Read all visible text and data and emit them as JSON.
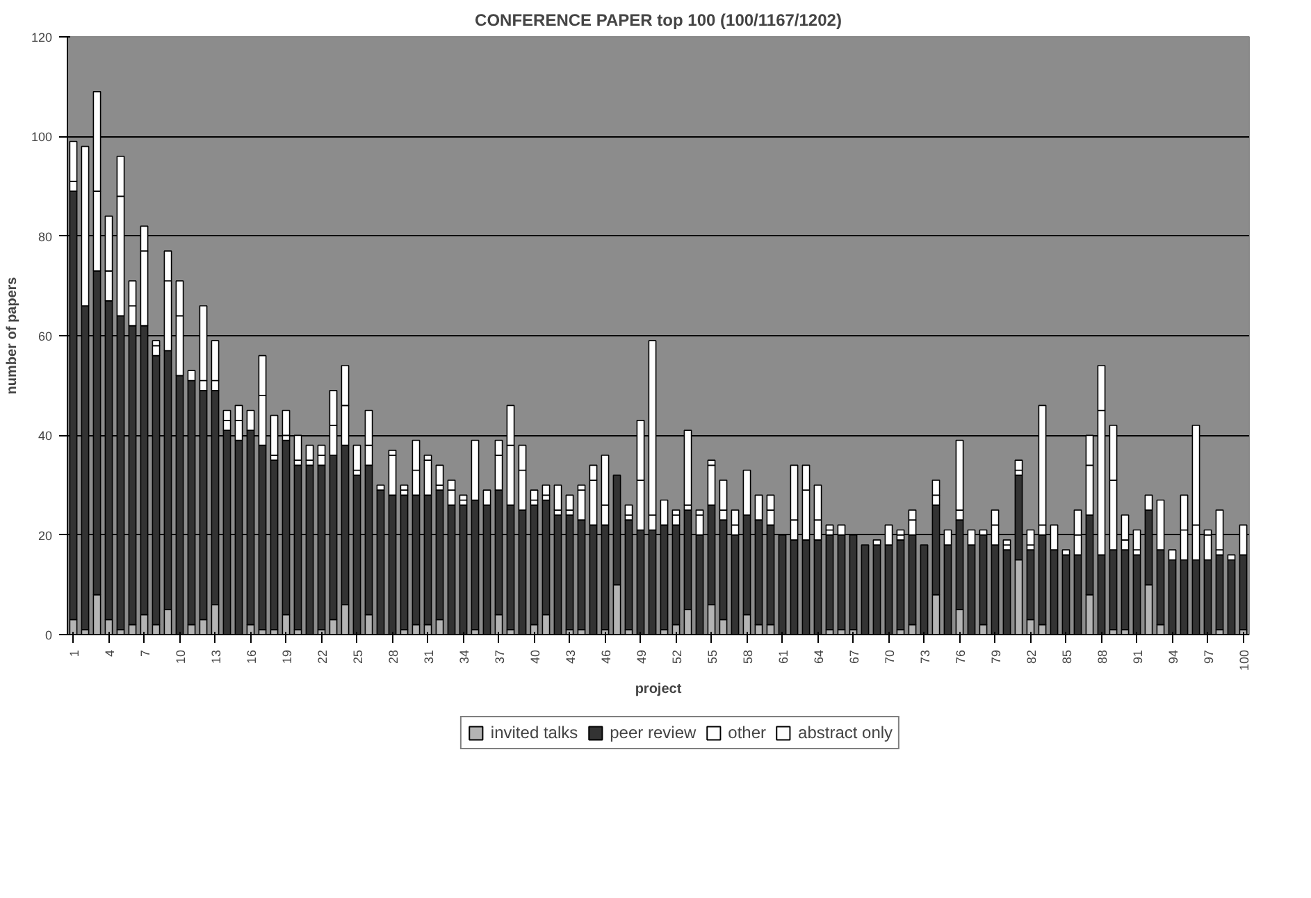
{
  "chart_data": {
    "type": "bar",
    "stacked": true,
    "title": "CONFERENCE PAPER top 100 (100/1167/1202)",
    "xlabel": "project",
    "ylabel": "number of papers",
    "categories": [
      "1",
      null,
      null,
      "4",
      null,
      null,
      "7",
      null,
      null,
      "10",
      null,
      null,
      "13",
      null,
      null,
      "16",
      null,
      null,
      "19",
      null,
      null,
      "22",
      null,
      null,
      "25",
      null,
      null,
      "28",
      null,
      null,
      "31",
      null,
      null,
      "34",
      null,
      null,
      "37",
      null,
      null,
      "40",
      null,
      null,
      "43",
      null,
      null,
      "46",
      null,
      null,
      "49",
      null,
      null,
      "52",
      null,
      null,
      "55",
      null,
      null,
      "58",
      null,
      null,
      "61",
      null,
      null,
      "64",
      null,
      null,
      "67",
      null,
      null,
      "70",
      null,
      null,
      "73",
      null,
      null,
      "76",
      null,
      null,
      "79",
      null,
      null,
      "82",
      null,
      null,
      "85",
      null,
      null,
      "88",
      null,
      null,
      "91",
      null,
      null,
      "94",
      null,
      null,
      "97",
      null,
      null,
      "100"
    ],
    "series": [
      {
        "name": "invited talks",
        "color": "#b4b4b4",
        "values": [
          3,
          1,
          8,
          3,
          1,
          2,
          4,
          2,
          5,
          0,
          2,
          3,
          6,
          0,
          0,
          2,
          1,
          1,
          4,
          1,
          0,
          1,
          3,
          6,
          0,
          4,
          0,
          0,
          1,
          2,
          2,
          3,
          0,
          0,
          1,
          0,
          4,
          1,
          0,
          2,
          4,
          0,
          1,
          1,
          0,
          1,
          10,
          1,
          0,
          0,
          1,
          2,
          5,
          0,
          6,
          3,
          0,
          4,
          2,
          2,
          0,
          0,
          0,
          0,
          1,
          1,
          1,
          0,
          0,
          0,
          1,
          2,
          0,
          8,
          0,
          5,
          0,
          2,
          0,
          0,
          15,
          3,
          2,
          0,
          0,
          0,
          8,
          0,
          1,
          1,
          0,
          10,
          2,
          0,
          0,
          0,
          0,
          1,
          0,
          1
        ]
      },
      {
        "name": "peer review",
        "color": "#333333",
        "values": [
          86,
          65,
          65,
          64,
          63,
          60,
          58,
          54,
          52,
          52,
          49,
          46,
          43,
          41,
          39,
          39,
          37,
          34,
          35,
          33,
          34,
          33,
          33,
          32,
          32,
          30,
          29,
          28,
          27,
          26,
          26,
          26,
          26,
          26,
          26,
          26,
          25,
          25,
          25,
          24,
          23,
          24,
          23,
          22,
          22,
          21,
          22,
          22,
          21,
          21,
          21,
          20,
          20,
          20,
          20,
          20,
          20,
          20,
          21,
          20,
          20,
          19,
          19,
          19,
          19,
          19,
          19,
          18,
          18,
          18,
          18,
          18,
          18,
          18,
          18,
          18,
          18,
          18,
          18,
          17,
          17,
          14,
          18,
          17,
          16,
          16,
          16,
          16,
          16,
          16,
          16,
          15,
          15,
          15,
          15,
          15,
          15,
          15,
          15,
          15
        ]
      },
      {
        "name": "other",
        "color": "#ffffff",
        "values": [
          2,
          32,
          16,
          6,
          24,
          4,
          15,
          2,
          14,
          12,
          2,
          2,
          2,
          2,
          4,
          4,
          10,
          1,
          1,
          1,
          1,
          2,
          6,
          8,
          1,
          4,
          1,
          8,
          1,
          5,
          7,
          1,
          3,
          1,
          12,
          3,
          7,
          12,
          8,
          1,
          1,
          1,
          1,
          6,
          9,
          4,
          0,
          1,
          10,
          3,
          5,
          2,
          1,
          4,
          8,
          2,
          2,
          9,
          5,
          3,
          0,
          4,
          10,
          4,
          1,
          2,
          0,
          0,
          1,
          4,
          1,
          3,
          0,
          2,
          3,
          2,
          3,
          1,
          4,
          1,
          1,
          1,
          2,
          5,
          1,
          4,
          10,
          29,
          14,
          2,
          1,
          3,
          10,
          2,
          6,
          7,
          5,
          1,
          1,
          6
        ]
      },
      {
        "name": "abstract only",
        "color": "#fefefe",
        "values": [
          8,
          0,
          20,
          11,
          8,
          5,
          5,
          1,
          6,
          7,
          0,
          15,
          8,
          2,
          3,
          0,
          8,
          8,
          5,
          5,
          3,
          2,
          7,
          8,
          5,
          7,
          0,
          1,
          1,
          6,
          1,
          4,
          2,
          1,
          0,
          0,
          3,
          8,
          5,
          2,
          2,
          5,
          3,
          1,
          3,
          10,
          0,
          2,
          12,
          35,
          0,
          1,
          15,
          1,
          1,
          6,
          3,
          0,
          0,
          3,
          0,
          11,
          5,
          7,
          1,
          0,
          0,
          0,
          0,
          0,
          1,
          2,
          0,
          3,
          0,
          14,
          0,
          0,
          3,
          1,
          2,
          3,
          24,
          0,
          0,
          5,
          6,
          9,
          11,
          5,
          4,
          0,
          0,
          0,
          7,
          20,
          1,
          8,
          0,
          0
        ]
      }
    ],
    "ylim": [
      0,
      120
    ],
    "yticks": [
      0,
      20,
      40,
      60,
      80,
      100,
      120
    ],
    "grid": "y",
    "legend": "bottom"
  }
}
